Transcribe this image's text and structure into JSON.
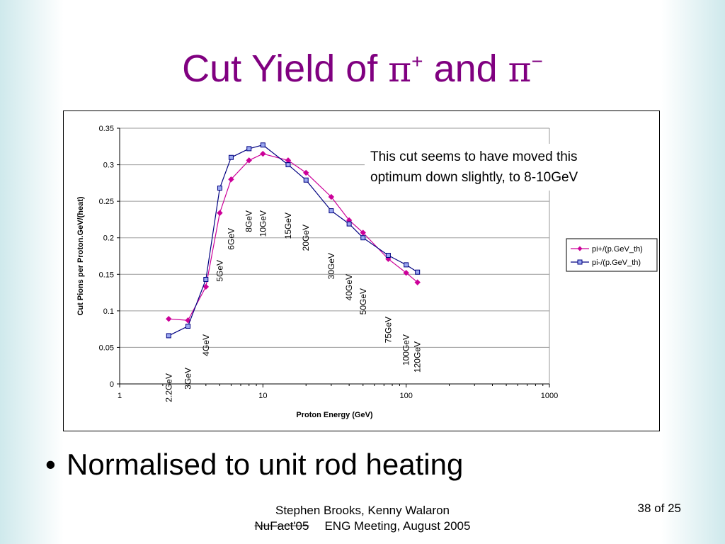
{
  "slide": {
    "title_prefix": "Cut Yield of ",
    "title_pi": "π",
    "title_plus": "+",
    "title_and": " and ",
    "title_minus": "−",
    "bullet": "Normalised to unit rod heating",
    "footer_line1": "Stephen Brooks, Kenny Walaron",
    "footer_left": "NuFact'05",
    "footer_right": "ENG Meeting, August 2005",
    "page_number": "38 of 25"
  },
  "chart_data": {
    "type": "line",
    "xscale": "log",
    "xlim": [
      1,
      1000
    ],
    "ylim": [
      0,
      0.35
    ],
    "xticks": [
      1,
      10,
      100,
      1000
    ],
    "xtick_labels": [
      "1",
      "10",
      "100",
      "1000"
    ],
    "yticks": [
      0,
      0.05,
      0.1,
      0.15,
      0.2,
      0.25,
      0.3,
      0.35
    ],
    "ytick_labels": [
      "0",
      "0.05",
      "0.1",
      "0.15",
      "0.2",
      "0.25",
      "0.3",
      "0.35"
    ],
    "xlabel": "Proton Energy (GeV)",
    "ylabel": "Cut Pions per Proton.GeV/(heat)",
    "grid": "horizontal",
    "legend_position": "right",
    "annotation": [
      "This cut seems to have moved this",
      "optimum down slightly, to 8-10GeV"
    ],
    "point_labels": [
      "2.2GeV",
      "3GeV",
      "4GeV",
      "5GeV",
      "6GeV",
      "8GeV",
      "10GeV",
      "15GeV",
      "20GeV",
      "30GeV",
      "40GeV",
      "50GeV",
      "75GeV",
      "100GeV",
      "120GeV"
    ],
    "x": [
      2.2,
      3,
      4,
      5,
      6,
      8,
      10,
      15,
      20,
      30,
      40,
      50,
      75,
      100,
      120
    ],
    "series": [
      {
        "name": "pi+/(p.GeV_th)",
        "color": "#cc0099",
        "marker": "diamond",
        "values": [
          0.089,
          0.087,
          0.133,
          0.234,
          0.28,
          0.306,
          0.315,
          0.306,
          0.289,
          0.256,
          0.224,
          0.207,
          0.171,
          0.152,
          0.139
        ]
      },
      {
        "name": "pi-/(p.GeV_th)",
        "color": "#000080",
        "marker": "square",
        "values": [
          0.066,
          0.079,
          0.143,
          0.268,
          0.31,
          0.322,
          0.327,
          0.3,
          0.279,
          0.237,
          0.219,
          0.2,
          0.176,
          0.163,
          0.153
        ]
      }
    ]
  }
}
